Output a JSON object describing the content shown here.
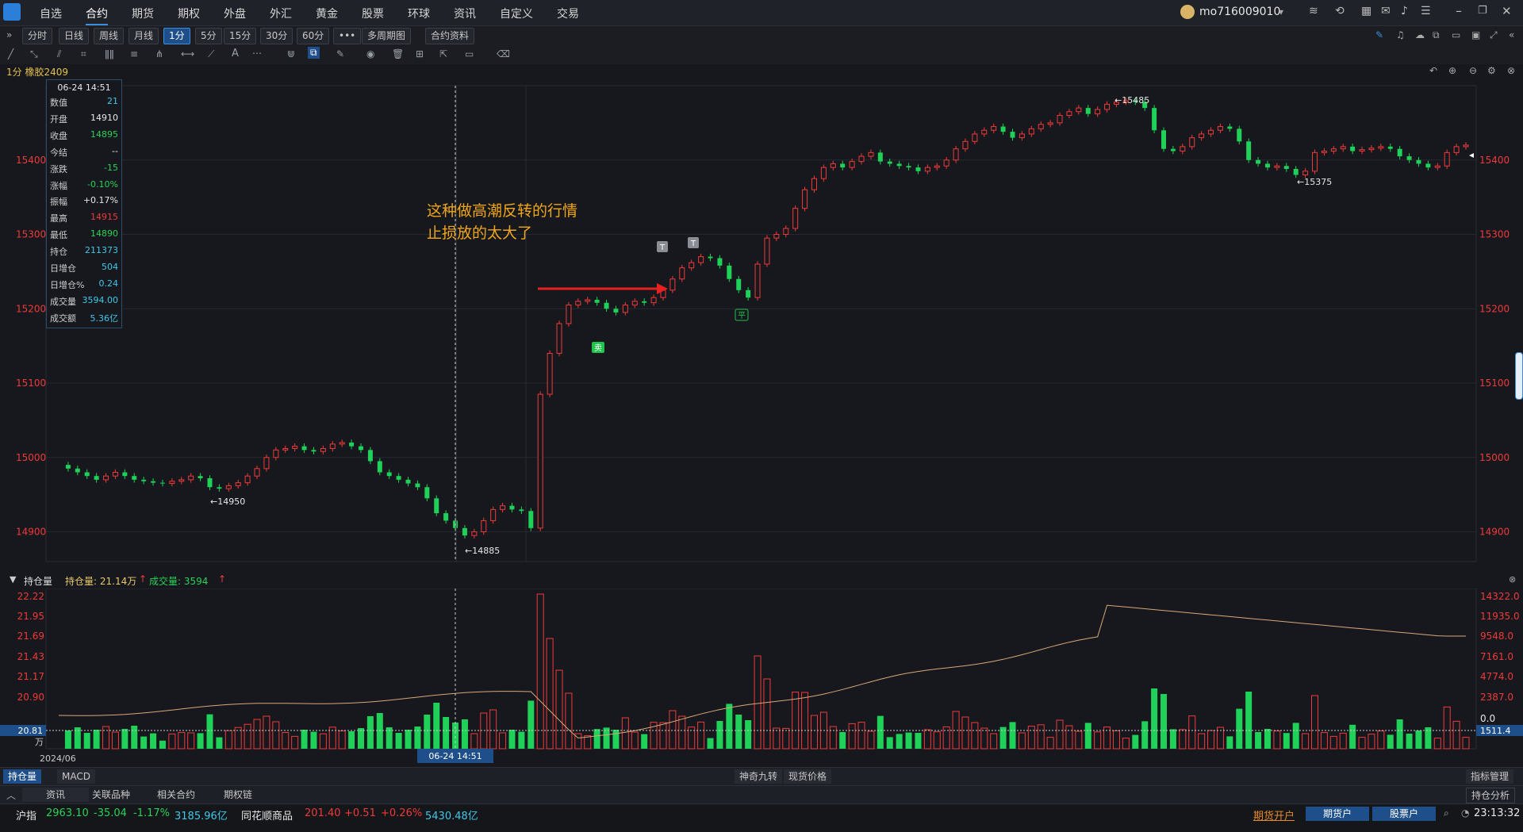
{
  "menu": [
    "自选",
    "合约",
    "期货",
    "期权",
    "外盘",
    "外汇",
    "黄金",
    "股票",
    "环球",
    "资讯",
    "自定义",
    "交易"
  ],
  "user": {
    "name": "mo716009010"
  },
  "period_buttons": [
    "分时",
    "日线",
    "周线",
    "月线",
    "1分",
    "5分",
    "15分",
    "30分",
    "60分",
    "•••",
    "多周期图",
    "合约资料"
  ],
  "contract_label": "1分  橡胶2409",
  "info": {
    "date": "06-24 14:51",
    "rows": [
      {
        "label": "数值",
        "value": "21",
        "color": "cyan"
      },
      {
        "label": "开盘",
        "value": "14910",
        "color": "white"
      },
      {
        "label": "收盘",
        "value": "14895",
        "color": "green"
      },
      {
        "label": "今结",
        "value": "--",
        "color": "white"
      },
      {
        "label": "涨跌",
        "value": "-15",
        "color": "green"
      },
      {
        "label": "涨幅",
        "value": "-0.10%",
        "color": "green"
      },
      {
        "label": "振幅",
        "value": "+0.17%",
        "color": "white"
      },
      {
        "label": "最高",
        "value": "14915",
        "color": "red"
      },
      {
        "label": "最低",
        "value": "14890",
        "color": "green"
      },
      {
        "label": "持仓",
        "value": "211373",
        "color": "cyan"
      },
      {
        "label": "日增仓",
        "value": "504",
        "color": "cyan"
      },
      {
        "label": "日增仓%",
        "value": "0.24",
        "color": "cyan"
      },
      {
        "label": "成交量",
        "value": "3594.00",
        "color": "cyan"
      },
      {
        "label": "成交额",
        "value": "5.36亿",
        "color": "cyan"
      }
    ]
  },
  "annotation": {
    "line1": "这种做高潮反转的行情",
    "line2": "止损放的太大了"
  },
  "price_axis": [
    "15400",
    "15300",
    "15200",
    "15100",
    "15000",
    "14900"
  ],
  "markers": {
    "high": "15485",
    "low1": "14950",
    "low2": "14885",
    "low3": "15375",
    "t1": "T",
    "t2": "T",
    "sell": "卖",
    "buy": "平"
  },
  "sub_header": {
    "title": "持仓量",
    "oi_label": "持仓量: 21.14万",
    "vol_label": "成交量: 3594"
  },
  "oi_axis": [
    "22.22",
    "21.95",
    "21.69",
    "21.43",
    "21.17",
    "20.90"
  ],
  "vol_axis": [
    "14322.0",
    "11935.0",
    "9548.0",
    "7161.0",
    "4774.0",
    "2387.0",
    "0.0"
  ],
  "cur_oi": "20.81",
  "cur_vol": "1511.4",
  "oi_unit": "万",
  "date_axis": "2024/06",
  "cursor_time": "06-24 14:51",
  "bottom_tabs": [
    "持仓量",
    "MACD"
  ],
  "bottom_center": [
    "神奇九转",
    "现货价格"
  ],
  "bottom_right": "指标管理",
  "news_tabs": [
    "资讯",
    "关联品种",
    "相关合约",
    "期权链"
  ],
  "news_right": "持仓分析",
  "status": {
    "idx1_name": "沪指",
    "idx1_price": "2963.10",
    "idx1_chg": "-35.04",
    "idx1_pct": "-1.17%",
    "idx1_amt": "3185.96亿",
    "idx2_name": "同花顺商品",
    "idx2_price": "201.40",
    "idx2_chg": "+0.51",
    "idx2_pct": "+0.26%",
    "idx2_amt": "5430.48亿",
    "open_acct": "期货开户",
    "btn1": "期货户",
    "btn2": "股票户",
    "time": "23:13:32"
  },
  "chart_data": {
    "type": "candlestick",
    "title": "",
    "ylim": [
      14860,
      15500
    ],
    "price_series": [
      14990,
      14985,
      14980,
      14975,
      14970,
      14975,
      14980,
      14975,
      14970,
      14968,
      14966,
      14965,
      14968,
      14970,
      14975,
      14972,
      14960,
      14958,
      14962,
      14966,
      14975,
      14985,
      15000,
      15010,
      15012,
      15015,
      15010,
      15008,
      15012,
      15018,
      15020,
      15015,
      15010,
      14995,
      14980,
      14975,
      14970,
      14965,
      14960,
      14945,
      14925,
      14915,
      14905,
      14895,
      14900,
      14915,
      14930,
      14935,
      14930,
      14928,
      14905,
      15085,
      15140,
      15180,
      15205,
      15210,
      15212,
      15208,
      15200,
      15195,
      15205,
      15210,
      15208,
      15215,
      15225,
      15240,
      15255,
      15262,
      15270,
      15268,
      15258,
      15240,
      15225,
      15215,
      15260,
      15295,
      15300,
      15308,
      15335,
      15360,
      15375,
      15390,
      15395,
      15390,
      15398,
      15405,
      15410,
      15398,
      15395,
      15392,
      15390,
      15385,
      15390,
      15392,
      15400,
      15415,
      15425,
      15435,
      15440,
      15445,
      15438,
      15430,
      15435,
      15442,
      15448,
      15450,
      15460,
      15465,
      15470,
      15462,
      15468,
      15475,
      15478,
      15480,
      15478,
      15470,
      15440,
      15415,
      15412,
      15418,
      15430,
      15435,
      15440,
      15445,
      15442,
      15425,
      15400,
      15395,
      15390,
      15392,
      15388,
      15380,
      15385,
      15410,
      15412,
      15415,
      15418,
      15412,
      15414,
      15416,
      15418,
      15415,
      15405,
      15400,
      15395,
      15390,
      15392,
      15410,
      15418,
      15420
    ]
  }
}
